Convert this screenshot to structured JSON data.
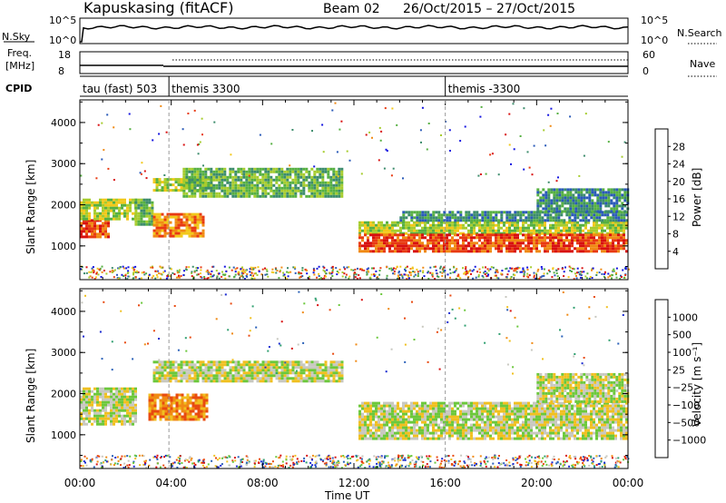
{
  "title": {
    "station": "Kapuskasing (fitACF)",
    "beam": "Beam 02",
    "dates": "26/Oct/2015 – 27/Oct/2015"
  },
  "nsky_panel": {
    "left_label": "N.Sky",
    "left_ticks": [
      "10^5",
      "10^0"
    ],
    "right_ticks": [
      "10^5",
      "10^0"
    ],
    "right_label": "N.Search"
  },
  "freq_panel": {
    "left_label_1": "Freq.",
    "left_label_2": "[MHz]",
    "left_ticks": [
      "18",
      "8"
    ],
    "right_ticks": [
      "60",
      "0"
    ],
    "right_label": "Nave"
  },
  "cpid_panel": {
    "label": "CPID",
    "segments": [
      {
        "label": "tau (fast) 503",
        "start_hour": 0,
        "end_hour": 3.9
      },
      {
        "label": "themis 3300",
        "start_hour": 3.9,
        "end_hour": 16
      },
      {
        "label": "themis -3300",
        "start_hour": 16,
        "end_hour": 24
      }
    ]
  },
  "power_panel": {
    "ylabel": "Slant Range [km]",
    "yticks": [
      "4000",
      "3000",
      "2000",
      "1000"
    ],
    "colorbar_label": "Power [dB]",
    "colorbar_ticks": [
      "28",
      "24",
      "20",
      "16",
      "12",
      "8",
      "4"
    ],
    "colors": [
      "#1414e0",
      "#2a5ab8",
      "#3c8c6c",
      "#56b042",
      "#a6cc2e",
      "#f2c81a",
      "#f08a14",
      "#e83a12",
      "#d81010"
    ]
  },
  "velocity_panel": {
    "ylabel": "Slant Range [km]",
    "yticks": [
      "4000",
      "3000",
      "2000",
      "1000"
    ],
    "colorbar_label": "Velocity [m s⁻¹]",
    "colorbar_ticks": [
      "1000",
      "500",
      "100",
      "25",
      "−25",
      "−100",
      "−500",
      "−1000"
    ],
    "colors": [
      "#1a2ad0",
      "#2a60b8",
      "#30a070",
      "#6cc83c",
      "#c8c8c0",
      "#f0c020",
      "#f08a14",
      "#e84a10",
      "#d81010"
    ]
  },
  "xaxis": {
    "label": "Time UT",
    "ticks": [
      "00:00",
      "04:00",
      "08:00",
      "12:00",
      "16:00",
      "20:00",
      "00:00"
    ]
  },
  "chart_data": {
    "type": "heatmap",
    "x_range_hours": [
      0,
      24
    ],
    "y_range_km": [
      180,
      4550
    ],
    "power_bands": [
      {
        "t0": 0,
        "t1": 1.2,
        "r0": 1250,
        "r1": 1650,
        "level": 7
      },
      {
        "t0": 0,
        "t1": 2.4,
        "r0": 1650,
        "r1": 2150,
        "level": 4
      },
      {
        "t0": 2.4,
        "t1": 3.2,
        "r0": 1500,
        "r1": 2150,
        "level": 3
      },
      {
        "t0": 3.2,
        "t1": 5.4,
        "r0": 1250,
        "r1": 1800,
        "level": 6
      },
      {
        "t0": 3.2,
        "t1": 5.8,
        "r0": 2350,
        "r1": 2650,
        "level": 4
      },
      {
        "t0": 4.5,
        "t1": 11.5,
        "r0": 2200,
        "r1": 2900,
        "level": 3
      },
      {
        "t0": 12.2,
        "t1": 24,
        "r0": 1300,
        "r1": 1600,
        "level": 4
      },
      {
        "t0": 12.2,
        "t1": 24,
        "r0": 900,
        "r1": 1300,
        "level": 7
      },
      {
        "t0": 14,
        "t1": 24,
        "r0": 1600,
        "r1": 1850,
        "level": 2
      },
      {
        "t0": 20,
        "t1": 24,
        "r0": 1850,
        "r1": 2400,
        "level": 2
      }
    ],
    "velocity_bands": [
      {
        "t0": 0,
        "t1": 2.4,
        "r0": 1250,
        "r1": 2150,
        "level": 4
      },
      {
        "t0": 3.0,
        "t1": 5.6,
        "r0": 1400,
        "r1": 2000,
        "level": 6
      },
      {
        "t0": 3.2,
        "t1": 11.5,
        "r0": 2300,
        "r1": 2800,
        "level": 4
      },
      {
        "t0": 12.2,
        "t1": 24,
        "r0": 900,
        "r1": 1800,
        "level": 4
      },
      {
        "t0": 20,
        "t1": 24,
        "r0": 1800,
        "r1": 2500,
        "level": 4
      }
    ]
  }
}
